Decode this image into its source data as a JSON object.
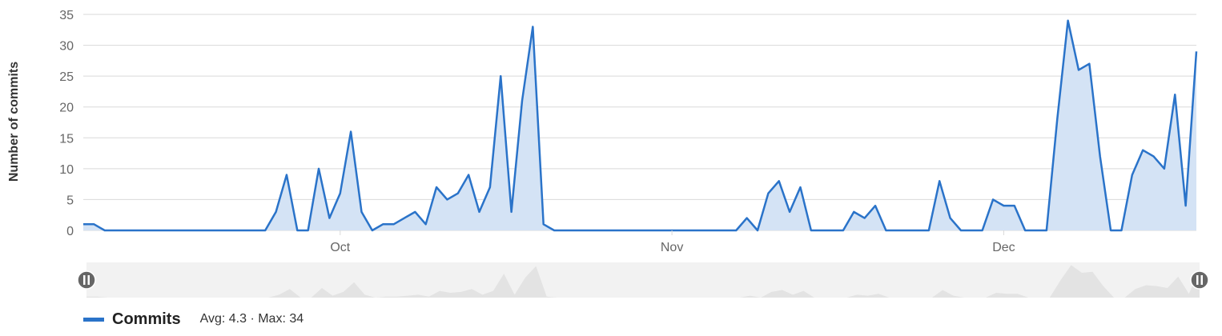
{
  "chart_data": {
    "type": "area",
    "ylabel": "Number of commits",
    "ylim": [
      0,
      35
    ],
    "yticks": [
      0,
      5,
      10,
      15,
      20,
      25,
      30,
      35
    ],
    "xtick_labels": [
      {
        "label": "Oct",
        "index": 24
      },
      {
        "label": "Nov",
        "index": 55
      },
      {
        "label": "Dec",
        "index": 86
      }
    ],
    "grid": true,
    "series": [
      {
        "name": "Commits",
        "values": [
          1,
          1,
          0,
          0,
          0,
          0,
          0,
          0,
          0,
          0,
          0,
          0,
          0,
          0,
          0,
          0,
          0,
          0,
          3,
          9,
          0,
          0,
          10,
          2,
          6,
          16,
          3,
          0,
          1,
          1,
          2,
          3,
          1,
          7,
          5,
          6,
          9,
          3,
          7,
          25,
          3,
          21,
          33,
          1,
          0,
          0,
          0,
          0,
          0,
          0,
          0,
          0,
          0,
          0,
          0,
          0,
          0,
          0,
          0,
          0,
          0,
          0,
          2,
          0,
          6,
          8,
          3,
          7,
          0,
          0,
          0,
          0,
          3,
          2,
          4,
          0,
          0,
          0,
          0,
          0,
          8,
          2,
          0,
          0,
          0,
          5,
          4,
          4,
          0,
          0,
          0,
          18,
          34,
          26,
          27,
          12,
          0,
          0,
          9,
          13,
          12,
          10,
          22,
          4,
          29
        ]
      }
    ],
    "legend": {
      "name": "Commits",
      "stats": "Avg: 4.3 · Max: 34",
      "position": "bottom-left"
    },
    "colors": {
      "line": "#2a73c9",
      "fill": "#d4e3f5",
      "grid": "#d9d9d9",
      "navigator_bg": "#f2f2f2",
      "navigator_fill": "#e3e3e3"
    }
  }
}
